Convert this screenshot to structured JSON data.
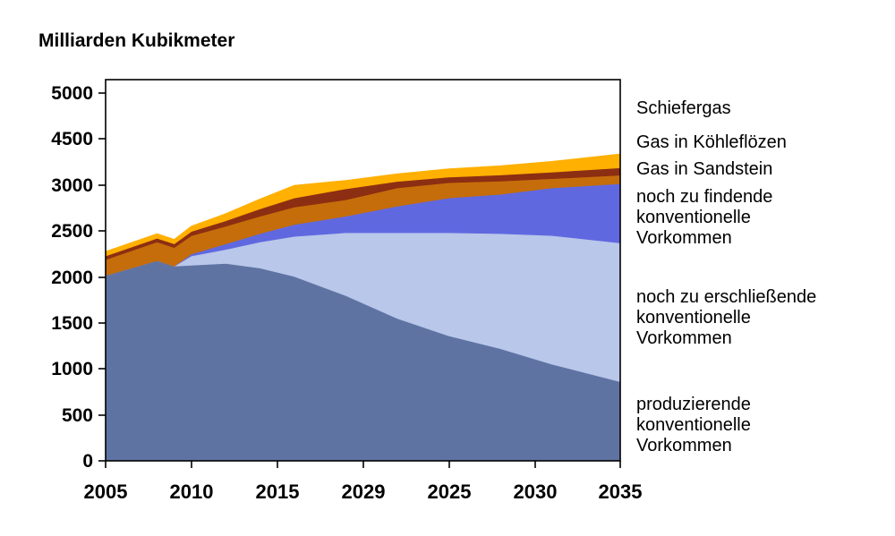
{
  "chart_data": {
    "type": "area",
    "stacked": true,
    "ylabel": "Milliarden Kubikmeter",
    "xlabel": "",
    "y_tick_labels": [
      "0",
      "500",
      "1000",
      "1500",
      "2000",
      "2500",
      "3000",
      "4500",
      "5000"
    ],
    "x_tick_labels": [
      "2005",
      "2010",
      "2015",
      "2029",
      "2025",
      "2030",
      "2035"
    ],
    "series": [
      {
        "name": "produzierende konventionelle Vorkommen",
        "color": "#5f73a3",
        "values": [
          [
            2005,
            2020
          ],
          [
            2008,
            2180
          ],
          [
            2009,
            2120
          ],
          [
            2012,
            2150
          ],
          [
            2014,
            2100
          ],
          [
            2016,
            2010
          ],
          [
            2019,
            1800
          ],
          [
            2022,
            1550
          ],
          [
            2025,
            1360
          ],
          [
            2028,
            1220
          ],
          [
            2031,
            1050
          ],
          [
            2035,
            860
          ]
        ]
      },
      {
        "name": "noch zu erschließende konventionelle Vorkommen",
        "color": "#b8c7ea",
        "values": [
          [
            2005,
            0
          ],
          [
            2008,
            0
          ],
          [
            2009,
            0
          ],
          [
            2010,
            100
          ],
          [
            2012,
            150
          ],
          [
            2014,
            280
          ],
          [
            2016,
            430
          ],
          [
            2019,
            680
          ],
          [
            2022,
            930
          ],
          [
            2025,
            1120
          ],
          [
            2028,
            1250
          ],
          [
            2031,
            1400
          ],
          [
            2035,
            1510
          ]
        ]
      },
      {
        "name": "noch zu findende konventionelle Vorkommen",
        "color": "#6068e0",
        "values": [
          [
            2005,
            0
          ],
          [
            2008,
            0
          ],
          [
            2009,
            0
          ],
          [
            2010,
            20
          ],
          [
            2012,
            60
          ],
          [
            2014,
            90
          ],
          [
            2016,
            130
          ],
          [
            2019,
            180
          ],
          [
            2022,
            290
          ],
          [
            2025,
            380
          ],
          [
            2028,
            430
          ],
          [
            2031,
            520
          ],
          [
            2035,
            680
          ]
        ]
      },
      {
        "name": "Gas in Sandstein",
        "color": "#c56d0a",
        "values": [
          [
            2005,
            170
          ],
          [
            2008,
            200
          ],
          [
            2009,
            200
          ],
          [
            2012,
            190
          ],
          [
            2014,
            190
          ],
          [
            2016,
            190
          ],
          [
            2019,
            180
          ],
          [
            2022,
            200
          ],
          [
            2025,
            220
          ],
          [
            2028,
            230
          ],
          [
            2031,
            240
          ],
          [
            2035,
            270
          ]
        ]
      },
      {
        "name": "Gas in Köhleflözen",
        "color": "#8c2e12",
        "values": [
          [
            2005,
            40
          ],
          [
            2008,
            40
          ],
          [
            2009,
            40
          ],
          [
            2012,
            60
          ],
          [
            2014,
            80
          ],
          [
            2016,
            100
          ],
          [
            2019,
            120
          ],
          [
            2022,
            150
          ],
          [
            2025,
            180
          ],
          [
            2028,
            200
          ],
          [
            2031,
            210
          ],
          [
            2035,
            240
          ]
        ]
      },
      {
        "name": "Schiefergas",
        "color": "#ffb000",
        "values": [
          [
            2005,
            50
          ],
          [
            2008,
            50
          ],
          [
            2009,
            50
          ],
          [
            2012,
            80
          ],
          [
            2014,
            110
          ],
          [
            2016,
            140
          ],
          [
            2019,
            200
          ],
          [
            2022,
            250
          ],
          [
            2025,
            270
          ],
          [
            2028,
            300
          ],
          [
            2031,
            350
          ],
          [
            2035,
            450
          ]
        ]
      }
    ],
    "label_lines": [
      [
        "Schiefergas"
      ],
      [
        "Gas in Köhleflözen"
      ],
      [
        "Gas in Sandstein"
      ],
      [
        "noch zu findende",
        "konventionelle",
        "Vorkommen"
      ],
      [
        "noch zu erschließende",
        "konventionelle",
        "Vorkommen"
      ],
      [
        "produzierende",
        "konventionelle",
        "Vorkommen"
      ]
    ]
  }
}
